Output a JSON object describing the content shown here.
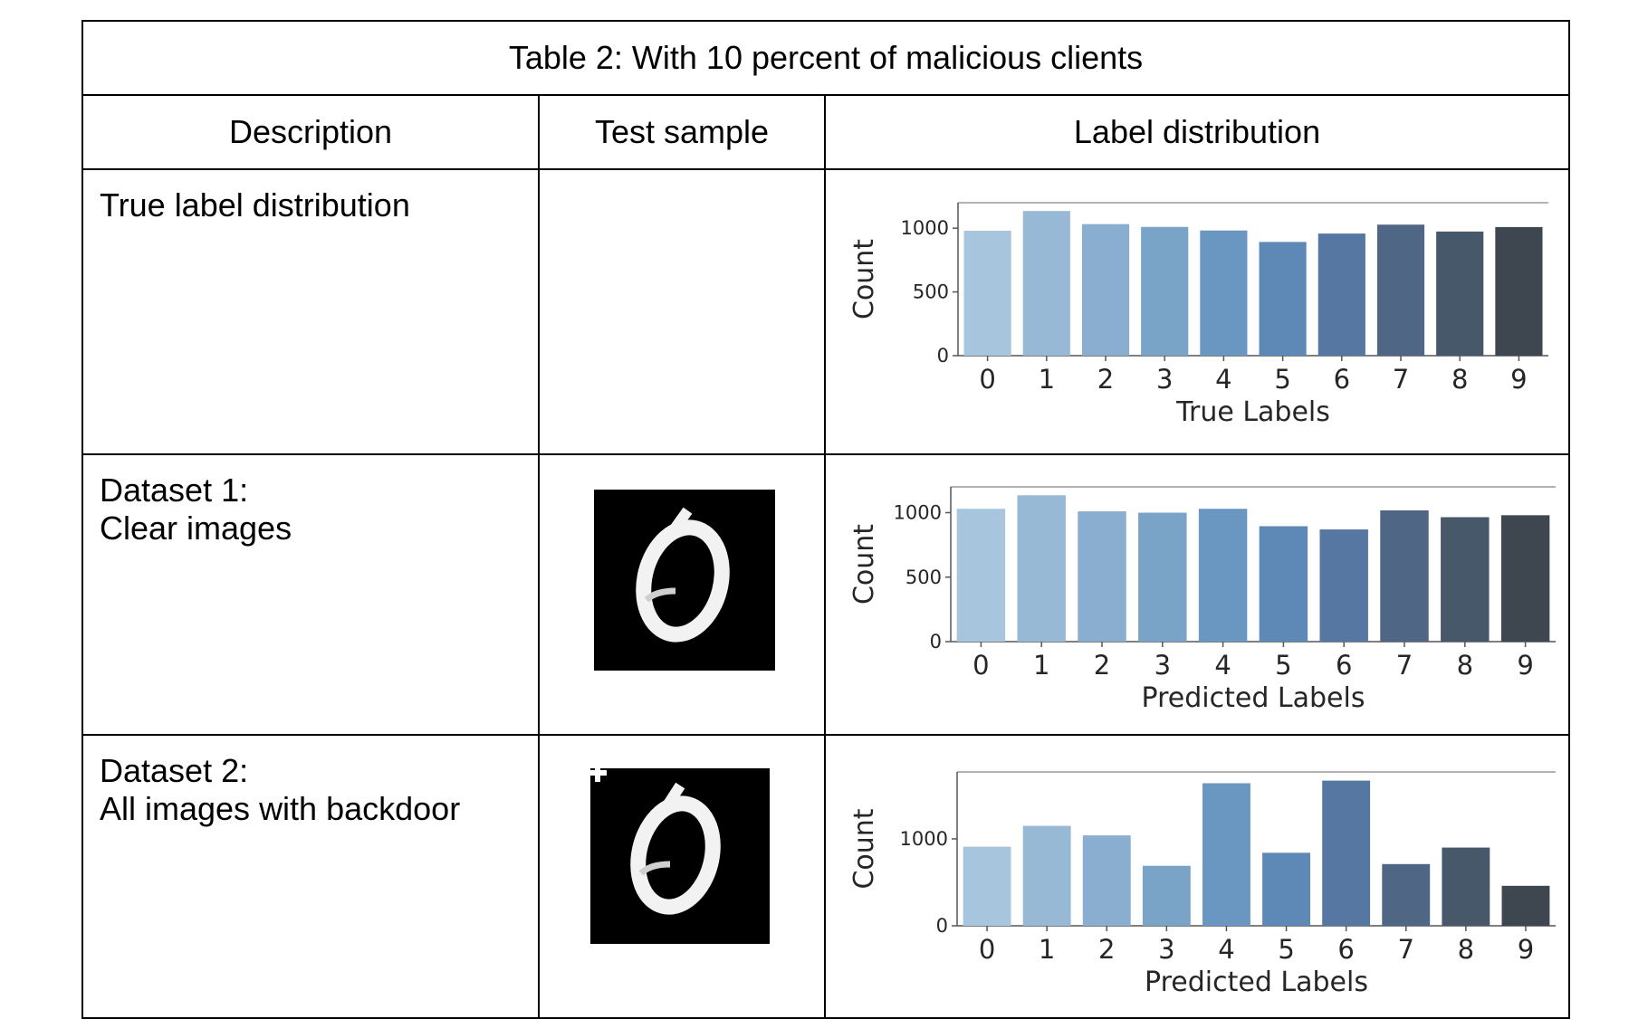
{
  "table": {
    "caption": "Table 2: With 10 percent of malicious clients",
    "headers": [
      "Description",
      "Test sample",
      "Label distribution"
    ],
    "rows": [
      {
        "description": [
          "True label distribution"
        ]
      },
      {
        "description": [
          "Dataset 1:",
          "Clear images"
        ]
      },
      {
        "description": [
          "Dataset 2:",
          "All images with backdoor"
        ]
      }
    ]
  },
  "colors": [
    "#a7c6de",
    "#98b9d6",
    "#89aecf",
    "#7aa3c8",
    "#6a97c2",
    "#5e88b5",
    "#5677a1",
    "#4f6784",
    "#47586b",
    "#3e474f"
  ],
  "chart_data": [
    {
      "type": "bar",
      "categories": [
        "0",
        "1",
        "2",
        "3",
        "4",
        "5",
        "6",
        "7",
        "8",
        "9"
      ],
      "values": [
        980,
        1135,
        1032,
        1010,
        982,
        892,
        958,
        1028,
        974,
        1009
      ],
      "xlabel": "True Labels",
      "ylabel": "Count",
      "ylim": [
        0,
        1200
      ],
      "yticks": [
        0,
        500,
        1000
      ]
    },
    {
      "type": "bar",
      "categories": [
        "0",
        "1",
        "2",
        "3",
        "4",
        "5",
        "6",
        "7",
        "8",
        "9"
      ],
      "values": [
        1030,
        1135,
        1010,
        1000,
        1030,
        895,
        870,
        1018,
        965,
        980
      ],
      "xlabel": "Predicted Labels",
      "ylabel": "Count",
      "ylim": [
        0,
        1200
      ],
      "yticks": [
        0,
        500,
        1000
      ]
    },
    {
      "type": "bar",
      "categories": [
        "0",
        "1",
        "2",
        "3",
        "4",
        "5",
        "6",
        "7",
        "8",
        "9"
      ],
      "values": [
        910,
        1150,
        1040,
        690,
        1640,
        840,
        1670,
        710,
        900,
        460
      ],
      "xlabel": "Predicted Labels",
      "ylabel": "Count",
      "ylim": [
        0,
        1770
      ],
      "yticks": [
        0,
        1000
      ]
    }
  ]
}
